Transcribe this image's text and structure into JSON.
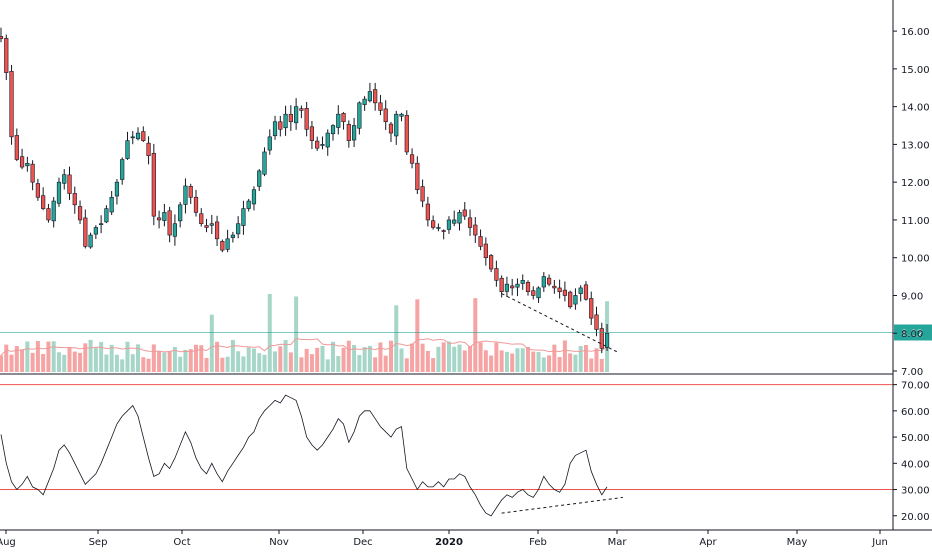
{
  "chart_data": [
    {
      "type": "candlestick",
      "title": "",
      "price_axis_ticks": [
        "16.00",
        "15.00",
        "14.00",
        "13.00",
        "12.00",
        "11.00",
        "10.00",
        "9.00",
        "8.00",
        "7.00"
      ],
      "price_axis_values": [
        16,
        15,
        14,
        13,
        12,
        11,
        10,
        9,
        8,
        7
      ],
      "ylim": [
        7.0,
        16.4
      ],
      "last_price_label": "8.02",
      "last_price": 8.02,
      "time_axis_labels": [
        "Aug",
        "Sep",
        "Oct",
        "Nov",
        "Dec",
        "2020",
        "Feb",
        "Mar",
        "Apr",
        "May",
        "Jun"
      ],
      "colors": {
        "up": "#26a69a",
        "down": "#ef5350",
        "up_vol": "#a5d6c7",
        "down_vol": "#f5a3a3",
        "ma": "#ef9a9a",
        "last_line": "#26a69a",
        "trend": "#131722"
      },
      "close": [
        15.8,
        14.9,
        13.2,
        12.6,
        12.4,
        12.5,
        12.0,
        11.6,
        11.3,
        11.0,
        11.5,
        12.0,
        12.2,
        11.7,
        11.4,
        11.0,
        10.3,
        10.6,
        10.8,
        10.9,
        11.3,
        11.6,
        12.0,
        12.6,
        13.1,
        13.2,
        13.3,
        13.1,
        12.7,
        11.1,
        11.0,
        11.2,
        10.6,
        10.9,
        11.4,
        11.9,
        11.6,
        11.2,
        10.9,
        10.8,
        10.9,
        10.5,
        10.2,
        10.5,
        10.6,
        10.9,
        11.3,
        11.5,
        11.8,
        12.3,
        12.8,
        13.2,
        13.6,
        13.4,
        13.8,
        13.6,
        14.0,
        13.9,
        13.4,
        13.1,
        12.9,
        13.0,
        13.3,
        13.5,
        13.8,
        13.6,
        13.1,
        13.5,
        14.1,
        14.2,
        14.4,
        14.1,
        13.9,
        13.6,
        13.3,
        13.8,
        13.8,
        12.8,
        12.5,
        11.8,
        11.5,
        11.0,
        10.8,
        10.8,
        10.7,
        11.0,
        11.0,
        11.2,
        11.1,
        10.8,
        10.6,
        10.3,
        10.0,
        9.7,
        9.4,
        9.1,
        9.3,
        9.2,
        9.3,
        9.4,
        9.1,
        9.0,
        9.2,
        9.5,
        9.3,
        9.2,
        9.1,
        9.0,
        8.7,
        9.0,
        9.2,
        8.9,
        8.4,
        8.1,
        7.6,
        8.0
      ],
      "rsi": {
        "axis_ticks": [
          "70.00",
          "60.00",
          "50.00",
          "40.00",
          "30.00",
          "20.00"
        ],
        "axis_values": [
          70,
          60,
          50,
          40,
          30,
          20
        ],
        "ylim": [
          18,
          71
        ],
        "levels": [
          70,
          30
        ],
        "values": [
          51,
          40,
          33,
          30,
          32,
          35,
          31,
          30,
          28,
          33,
          38,
          45,
          47,
          44,
          40,
          36,
          32,
          34,
          36,
          40,
          45,
          50,
          55,
          58,
          60,
          62,
          58,
          50,
          42,
          35,
          36,
          40,
          38,
          42,
          47,
          52,
          48,
          42,
          38,
          36,
          40,
          36,
          33,
          37,
          40,
          43,
          46,
          50,
          52,
          57,
          60,
          62,
          64,
          63,
          66,
          65,
          64,
          58,
          50,
          47,
          45,
          47,
          50,
          53,
          57,
          55,
          48,
          52,
          58,
          60,
          60,
          57,
          54,
          52,
          50,
          53,
          54,
          38,
          34,
          30,
          33,
          31,
          31,
          33,
          31,
          34,
          34,
          36,
          35,
          31,
          28,
          24,
          21,
          20,
          23,
          26,
          28,
          27,
          29,
          30,
          28,
          27,
          30,
          35,
          32,
          30,
          29,
          32,
          40,
          43,
          44,
          45,
          37,
          32,
          28,
          31
        ]
      }
    }
  ]
}
